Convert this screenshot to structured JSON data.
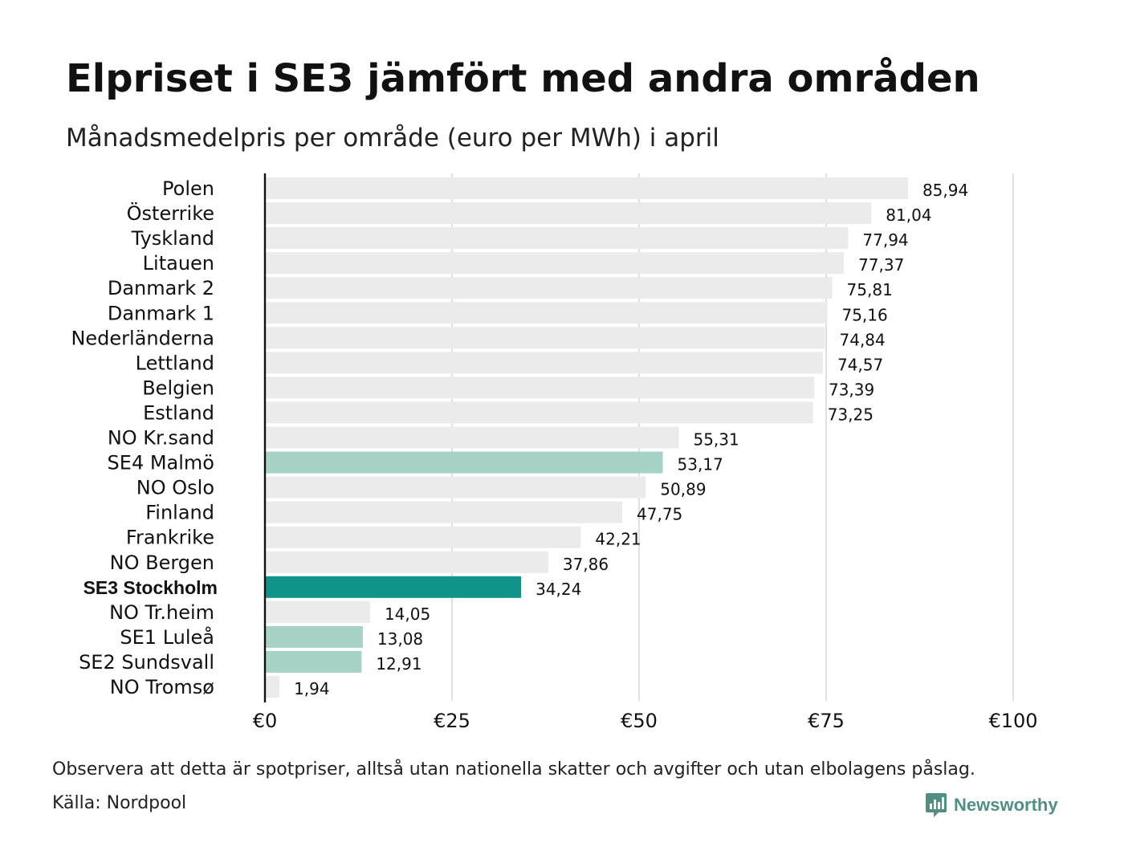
{
  "title": "Elpriset i SE3 jämfört med andra områden",
  "subtitle": "Månadsmedelpris per område (euro per MWh) i april",
  "footer": {
    "note": "Observera att detta är spotpriser, alltså utan nationella skatter och avgifter och utan elbolagens påslag.",
    "source": "Källa: Nordpool",
    "brand": "Newsworthy"
  },
  "colors": {
    "default_bar": "#ebebeb",
    "se_bar": "#a7d2c8",
    "highlight_bar": "#12938a",
    "grid": "#cccccc",
    "axis": "#111111",
    "brand": "#4f8f84"
  },
  "chart_data": {
    "type": "bar",
    "orientation": "horizontal",
    "categories": [
      "Polen",
      "Österrike",
      "Tyskland",
      "Litauen",
      "Danmark 2",
      "Danmark 1",
      "Nederländerna",
      "Lettland",
      "Belgien",
      "Estland",
      "NO Kr.sand",
      "SE4 Malmö",
      "NO Oslo",
      "Finland",
      "Frankrike",
      "NO Bergen",
      "SE3 Stockholm",
      "NO Tr.heim",
      "SE1 Luleå",
      "SE2 Sundsvall",
      "NO Tromsø"
    ],
    "values": [
      85.94,
      81.04,
      77.94,
      77.37,
      75.81,
      75.16,
      74.84,
      74.57,
      73.39,
      73.25,
      55.31,
      53.17,
      50.89,
      47.75,
      42.21,
      37.86,
      34.24,
      14.05,
      13.08,
      12.91,
      1.94
    ],
    "value_labels": [
      "85,94",
      "81,04",
      "77,94",
      "77,37",
      "75,81",
      "75,16",
      "74,84",
      "74,57",
      "73,39",
      "73,25",
      "55,31",
      "53,17",
      "50,89",
      "47,75",
      "42,21",
      "37,86",
      "34,24",
      "14,05",
      "13,08",
      "12,91",
      "1,94"
    ],
    "bar_groups": [
      "default",
      "default",
      "default",
      "default",
      "default",
      "default",
      "default",
      "default",
      "default",
      "default",
      "default",
      "se",
      "default",
      "default",
      "default",
      "default",
      "highlight",
      "default",
      "se",
      "se",
      "default"
    ],
    "highlight_category": "SE3 Stockholm",
    "xlim": [
      0,
      100
    ],
    "xticks": [
      0,
      25,
      50,
      75,
      100
    ],
    "xtick_labels": [
      "€0",
      "€25",
      "€50",
      "€75",
      "€100"
    ],
    "xlabel": "",
    "ylabel": "",
    "grid": true
  }
}
